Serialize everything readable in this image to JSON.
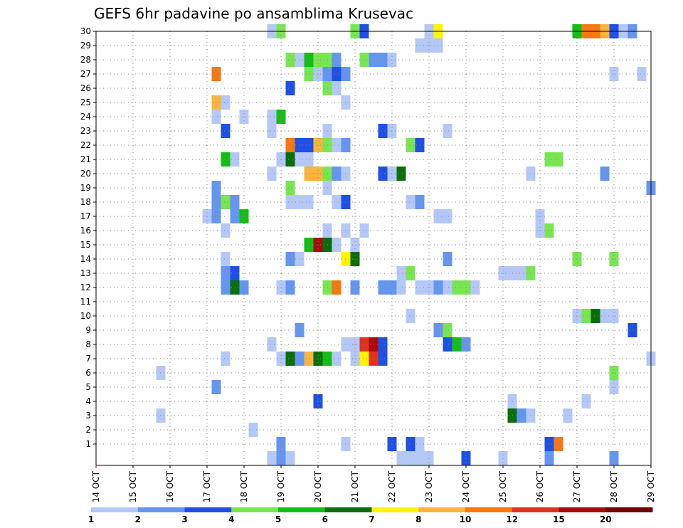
{
  "chart_data": {
    "type": "heatmap",
    "title": "GEFS 6hr padavine po ansamblima Krusevac",
    "xlabel": "",
    "ylabel": "",
    "x_ticks": [
      "14 OCT",
      "15 OCT",
      "16 OCT",
      "17 OCT",
      "18 OCT",
      "19 OCT",
      "20 OCT",
      "21 OCT",
      "22 OCT",
      "23 OCT",
      "24 OCT",
      "25 OCT",
      "26 OCT",
      "27 OCT",
      "28 OCT",
      "29 OCT"
    ],
    "y_ticks": [
      "1",
      "2",
      "3",
      "4",
      "5",
      "6",
      "7",
      "8",
      "9",
      "10",
      "11",
      "12",
      "13",
      "14",
      "15",
      "16",
      "17",
      "18",
      "19",
      "20",
      "21",
      "22",
      "23",
      "24",
      "25",
      "26",
      "27",
      "28",
      "29",
      "30"
    ],
    "xlim": [
      0,
      60
    ],
    "ylim": [
      0,
      30
    ],
    "grid": true,
    "legend_labels": [
      "1",
      "2",
      "3",
      "4",
      "5",
      "6",
      "7",
      "8",
      "10",
      "12",
      "15",
      "20"
    ],
    "colors": [
      "#b4c8f8",
      "#6496f0",
      "#1e50e6",
      "#78e650",
      "#14be14",
      "#0a6e0a",
      "#fff500",
      "#fab43c",
      "#f57814",
      "#e1321e",
      "#aa0a0a",
      "#6e0000"
    ],
    "cells": [
      [
        30,
        19,
        0
      ],
      [
        30,
        20,
        3
      ],
      [
        30,
        28,
        3
      ],
      [
        30,
        29,
        2
      ],
      [
        30,
        36,
        0
      ],
      [
        30,
        37,
        6
      ],
      [
        30,
        52,
        4
      ],
      [
        30,
        53,
        8
      ],
      [
        30,
        54,
        8
      ],
      [
        30,
        55,
        7
      ],
      [
        30,
        56,
        2
      ],
      [
        30,
        57,
        0
      ],
      [
        30,
        58,
        1
      ],
      [
        29,
        35,
        0
      ],
      [
        29,
        36,
        0
      ],
      [
        29,
        37,
        0
      ],
      [
        28,
        21,
        3
      ],
      [
        28,
        22,
        0
      ],
      [
        28,
        23,
        4
      ],
      [
        28,
        24,
        3
      ],
      [
        28,
        25,
        3
      ],
      [
        28,
        26,
        1
      ],
      [
        28,
        29,
        3
      ],
      [
        28,
        30,
        1
      ],
      [
        28,
        31,
        1
      ],
      [
        28,
        32,
        0
      ],
      [
        27,
        13,
        8
      ],
      [
        27,
        23,
        3
      ],
      [
        27,
        24,
        0
      ],
      [
        27,
        25,
        1
      ],
      [
        27,
        26,
        2
      ],
      [
        27,
        27,
        1
      ],
      [
        27,
        56,
        0
      ],
      [
        27,
        59,
        0
      ],
      [
        26,
        21,
        2
      ],
      [
        26,
        25,
        3
      ],
      [
        26,
        26,
        0
      ],
      [
        25,
        13,
        7
      ],
      [
        25,
        14,
        0
      ],
      [
        25,
        27,
        0
      ],
      [
        24,
        13,
        0
      ],
      [
        24,
        16,
        0
      ],
      [
        24,
        19,
        0
      ],
      [
        24,
        20,
        4
      ],
      [
        23,
        14,
        2
      ],
      [
        23,
        19,
        0
      ],
      [
        23,
        25,
        0
      ],
      [
        23,
        31,
        2
      ],
      [
        23,
        32,
        0
      ],
      [
        23,
        38,
        0
      ],
      [
        22,
        21,
        8
      ],
      [
        22,
        22,
        2
      ],
      [
        22,
        23,
        2
      ],
      [
        22,
        24,
        7
      ],
      [
        22,
        25,
        3
      ],
      [
        22,
        26,
        0
      ],
      [
        22,
        27,
        1
      ],
      [
        22,
        34,
        3
      ],
      [
        22,
        35,
        2
      ],
      [
        21,
        14,
        4
      ],
      [
        21,
        15,
        0
      ],
      [
        21,
        20,
        0
      ],
      [
        21,
        21,
        5
      ],
      [
        21,
        22,
        0
      ],
      [
        21,
        23,
        0
      ],
      [
        21,
        49,
        3
      ],
      [
        21,
        50,
        3
      ],
      [
        20,
        19,
        0
      ],
      [
        20,
        23,
        7
      ],
      [
        20,
        24,
        7
      ],
      [
        20,
        25,
        3
      ],
      [
        20,
        26,
        1
      ],
      [
        20,
        27,
        0
      ],
      [
        20,
        31,
        2
      ],
      [
        20,
        32,
        0
      ],
      [
        20,
        33,
        5
      ],
      [
        20,
        47,
        0
      ],
      [
        20,
        55,
        1
      ],
      [
        19,
        13,
        1
      ],
      [
        19,
        21,
        3
      ],
      [
        19,
        25,
        0
      ],
      [
        19,
        60,
        1
      ],
      [
        18,
        13,
        1
      ],
      [
        18,
        14,
        3
      ],
      [
        18,
        15,
        1
      ],
      [
        18,
        21,
        0
      ],
      [
        18,
        22,
        0
      ],
      [
        18,
        23,
        0
      ],
      [
        18,
        26,
        0
      ],
      [
        18,
        27,
        2
      ],
      [
        18,
        34,
        0
      ],
      [
        18,
        35,
        1
      ],
      [
        17,
        12,
        0
      ],
      [
        17,
        13,
        1
      ],
      [
        17,
        15,
        1
      ],
      [
        17,
        16,
        4
      ],
      [
        17,
        37,
        0
      ],
      [
        17,
        38,
        0
      ],
      [
        17,
        48,
        0
      ],
      [
        16,
        14,
        0
      ],
      [
        16,
        25,
        0
      ],
      [
        16,
        27,
        0
      ],
      [
        16,
        29,
        0
      ],
      [
        16,
        48,
        0
      ],
      [
        16,
        49,
        3
      ],
      [
        15,
        23,
        4
      ],
      [
        15,
        24,
        10
      ],
      [
        15,
        25,
        5
      ],
      [
        15,
        26,
        0
      ],
      [
        15,
        28,
        0
      ],
      [
        14,
        14,
        0
      ],
      [
        14,
        21,
        1
      ],
      [
        14,
        22,
        0
      ],
      [
        14,
        27,
        6
      ],
      [
        14,
        28,
        5
      ],
      [
        14,
        38,
        1
      ],
      [
        14,
        52,
        3
      ],
      [
        14,
        56,
        3
      ],
      [
        13,
        14,
        1
      ],
      [
        13,
        15,
        2
      ],
      [
        13,
        33,
        0
      ],
      [
        13,
        34,
        3
      ],
      [
        13,
        44,
        0
      ],
      [
        13,
        45,
        0
      ],
      [
        13,
        46,
        0
      ],
      [
        13,
        47,
        3
      ],
      [
        12,
        14,
        1
      ],
      [
        12,
        15,
        5
      ],
      [
        12,
        16,
        1
      ],
      [
        12,
        20,
        0
      ],
      [
        12,
        21,
        1
      ],
      [
        12,
        25,
        3
      ],
      [
        12,
        26,
        8
      ],
      [
        12,
        28,
        1
      ],
      [
        12,
        31,
        1
      ],
      [
        12,
        32,
        1
      ],
      [
        12,
        33,
        0
      ],
      [
        12,
        35,
        0
      ],
      [
        12,
        36,
        0
      ],
      [
        12,
        37,
        1
      ],
      [
        12,
        38,
        0
      ],
      [
        12,
        39,
        3
      ],
      [
        12,
        40,
        3
      ],
      [
        12,
        41,
        0
      ],
      [
        10,
        34,
        0
      ],
      [
        10,
        52,
        0
      ],
      [
        10,
        53,
        3
      ],
      [
        10,
        54,
        5
      ],
      [
        10,
        55,
        0
      ],
      [
        10,
        56,
        0
      ],
      [
        9,
        22,
        1
      ],
      [
        9,
        37,
        1
      ],
      [
        9,
        38,
        3
      ],
      [
        9,
        58,
        2
      ],
      [
        8,
        19,
        0
      ],
      [
        8,
        27,
        0
      ],
      [
        8,
        28,
        0
      ],
      [
        8,
        29,
        9
      ],
      [
        8,
        30,
        10
      ],
      [
        8,
        31,
        2
      ],
      [
        8,
        38,
        2
      ],
      [
        8,
        39,
        4
      ],
      [
        8,
        40,
        1
      ],
      [
        7,
        14,
        0
      ],
      [
        7,
        20,
        0
      ],
      [
        7,
        21,
        5
      ],
      [
        7,
        22,
        1
      ],
      [
        7,
        23,
        7
      ],
      [
        7,
        24,
        5
      ],
      [
        7,
        25,
        4
      ],
      [
        7,
        26,
        0
      ],
      [
        7,
        28,
        0
      ],
      [
        7,
        29,
        6
      ],
      [
        7,
        30,
        9
      ],
      [
        7,
        31,
        2
      ],
      [
        7,
        60,
        0
      ],
      [
        6,
        7,
        0
      ],
      [
        6,
        56,
        3
      ],
      [
        5,
        13,
        1
      ],
      [
        5,
        56,
        0
      ],
      [
        4,
        24,
        2
      ],
      [
        4,
        45,
        0
      ],
      [
        4,
        53,
        0
      ],
      [
        3,
        7,
        0
      ],
      [
        3,
        45,
        5
      ],
      [
        3,
        46,
        1
      ],
      [
        3,
        47,
        0
      ],
      [
        3,
        51,
        0
      ],
      [
        2,
        17,
        0
      ],
      [
        1,
        20,
        1
      ],
      [
        1,
        27,
        0
      ],
      [
        1,
        32,
        2
      ],
      [
        1,
        34,
        2
      ],
      [
        1,
        35,
        0
      ],
      [
        1,
        49,
        2
      ],
      [
        1,
        50,
        8
      ],
      [
        0,
        19,
        0
      ],
      [
        0,
        20,
        1
      ],
      [
        0,
        21,
        0
      ],
      [
        0,
        33,
        0
      ],
      [
        0,
        34,
        0
      ],
      [
        0,
        35,
        0
      ],
      [
        0,
        36,
        0
      ],
      [
        0,
        40,
        2
      ],
      [
        0,
        44,
        0
      ],
      [
        0,
        49,
        1
      ],
      [
        0,
        56,
        1
      ]
    ]
  }
}
